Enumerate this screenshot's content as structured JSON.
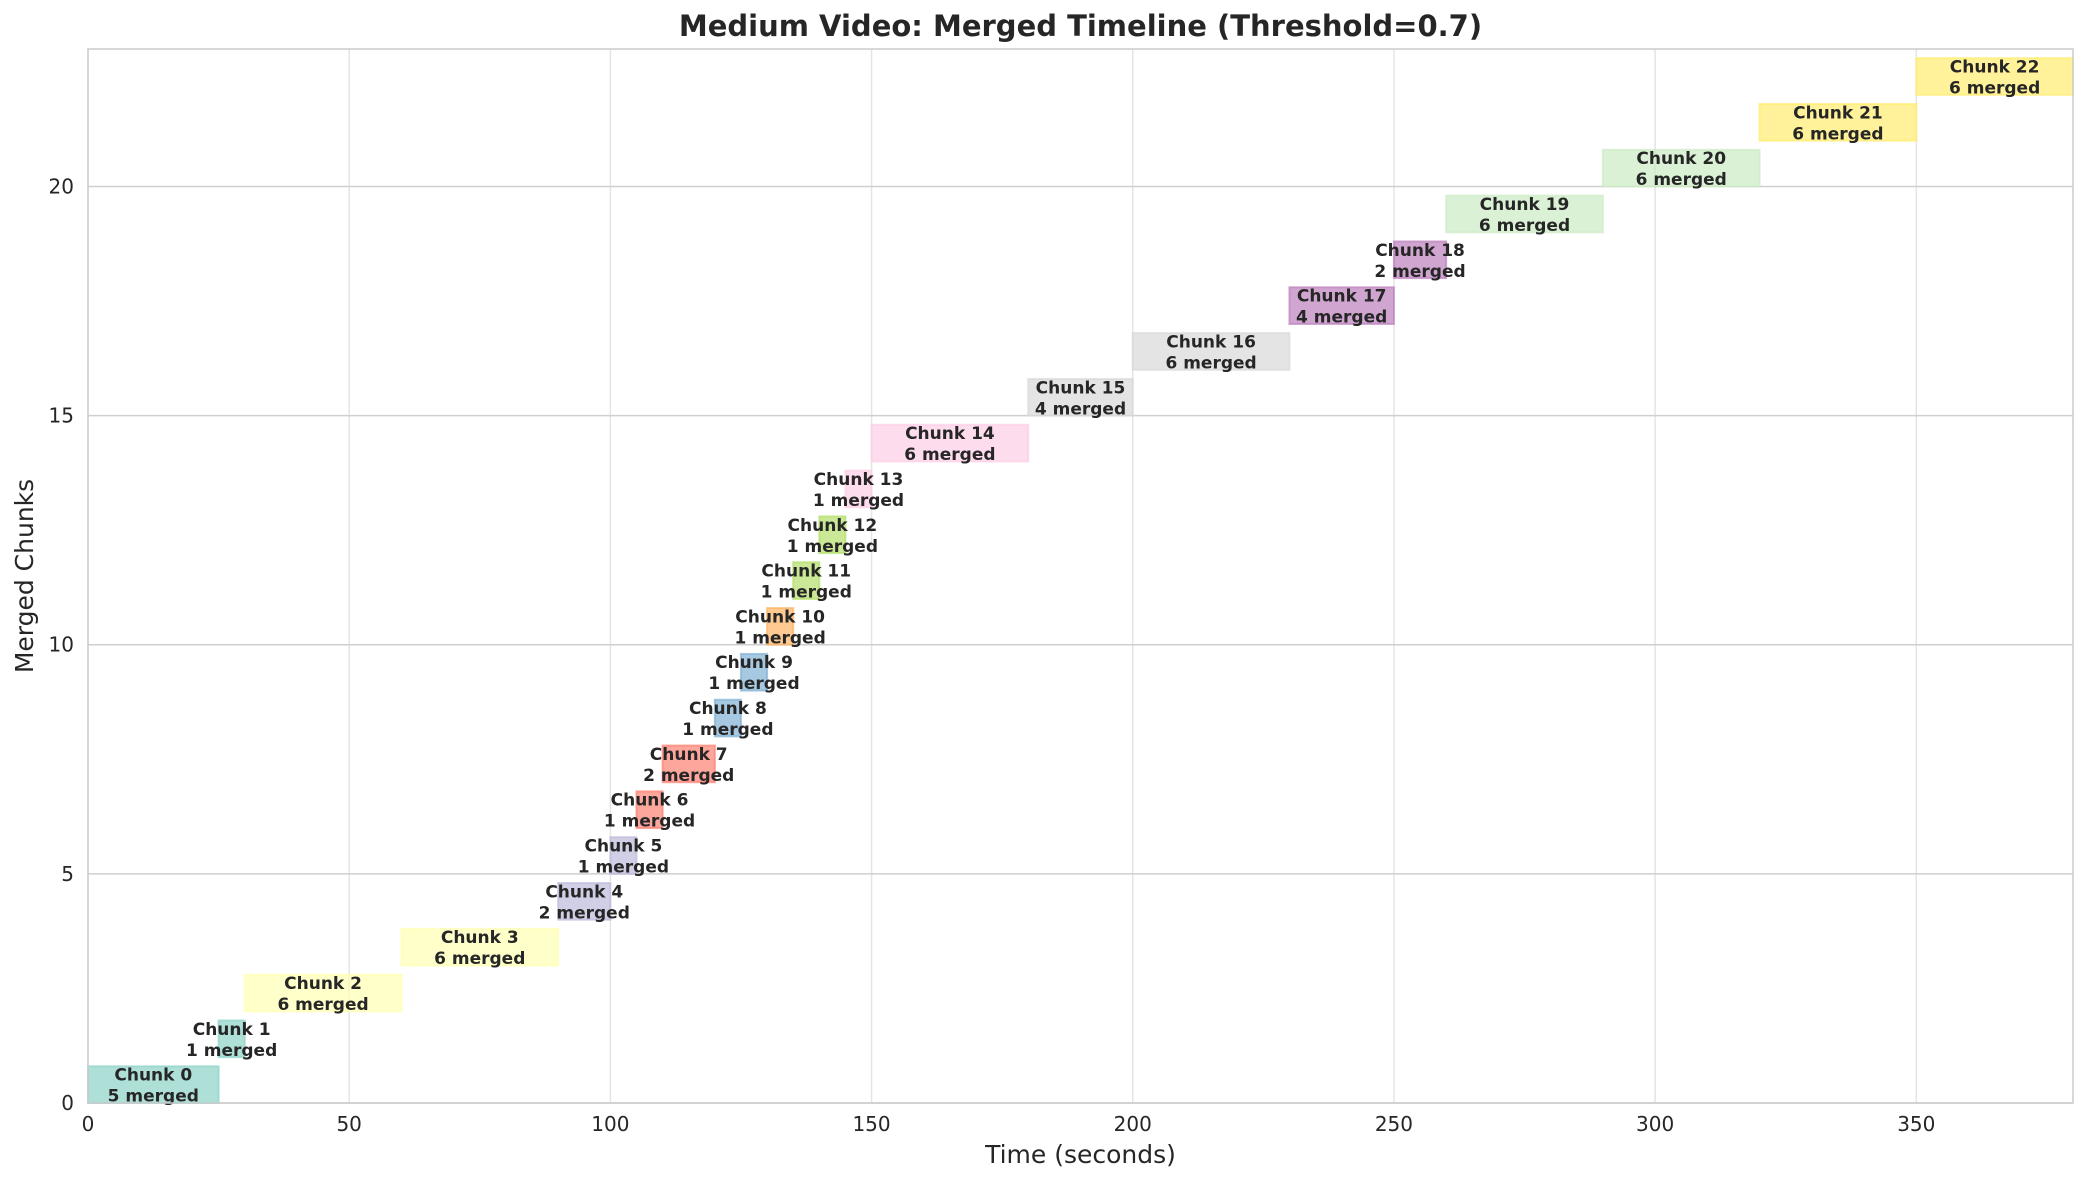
{
  "chart_data": {
    "type": "bar",
    "orientation": "horizontal-timeline",
    "title": "Medium Video: Merged Timeline (Threshold=0.7)",
    "xlabel": "Time (seconds)",
    "ylabel": "Merged Chunks",
    "xlim": [
      0,
      380
    ],
    "ylim": [
      0,
      23
    ],
    "xticks": [
      0,
      50,
      100,
      150,
      200,
      250,
      300,
      350
    ],
    "yticks": [
      0,
      5,
      10,
      15,
      20
    ],
    "grid": true,
    "legend": "none",
    "bar_opacity": 0.7,
    "chunks": [
      {
        "index": 0,
        "label": "Chunk 0",
        "sublabel": "5 merged",
        "start": 0,
        "end": 25,
        "color": "#8dd3c7"
      },
      {
        "index": 1,
        "label": "Chunk 1",
        "sublabel": "1 merged",
        "start": 25,
        "end": 30,
        "color": "#8dd3c7"
      },
      {
        "index": 2,
        "label": "Chunk 2",
        "sublabel": "6 merged",
        "start": 30,
        "end": 60,
        "color": "#ffffb3"
      },
      {
        "index": 3,
        "label": "Chunk 3",
        "sublabel": "6 merged",
        "start": 60,
        "end": 90,
        "color": "#ffffb3"
      },
      {
        "index": 4,
        "label": "Chunk 4",
        "sublabel": "2 merged",
        "start": 90,
        "end": 100,
        "color": "#bebada"
      },
      {
        "index": 5,
        "label": "Chunk 5",
        "sublabel": "1 merged",
        "start": 100,
        "end": 105,
        "color": "#bebada"
      },
      {
        "index": 6,
        "label": "Chunk 6",
        "sublabel": "1 merged",
        "start": 105,
        "end": 110,
        "color": "#fb8072"
      },
      {
        "index": 7,
        "label": "Chunk 7",
        "sublabel": "2 merged",
        "start": 110,
        "end": 120,
        "color": "#fb8072"
      },
      {
        "index": 8,
        "label": "Chunk 8",
        "sublabel": "1 merged",
        "start": 120,
        "end": 125,
        "color": "#80b1d3"
      },
      {
        "index": 9,
        "label": "Chunk 9",
        "sublabel": "1 merged",
        "start": 125,
        "end": 130,
        "color": "#80b1d3"
      },
      {
        "index": 10,
        "label": "Chunk 10",
        "sublabel": "1 merged",
        "start": 130,
        "end": 135,
        "color": "#fdb462"
      },
      {
        "index": 11,
        "label": "Chunk 11",
        "sublabel": "1 merged",
        "start": 135,
        "end": 140,
        "color": "#b3de69"
      },
      {
        "index": 12,
        "label": "Chunk 12",
        "sublabel": "1 merged",
        "start": 140,
        "end": 145,
        "color": "#b3de69"
      },
      {
        "index": 13,
        "label": "Chunk 13",
        "sublabel": "1 merged",
        "start": 145,
        "end": 150,
        "color": "#fccde5"
      },
      {
        "index": 14,
        "label": "Chunk 14",
        "sublabel": "6 merged",
        "start": 150,
        "end": 180,
        "color": "#fccde5"
      },
      {
        "index": 15,
        "label": "Chunk 15",
        "sublabel": "4 merged",
        "start": 180,
        "end": 200,
        "color": "#d9d9d9"
      },
      {
        "index": 16,
        "label": "Chunk 16",
        "sublabel": "6 merged",
        "start": 200,
        "end": 230,
        "color": "#d9d9d9"
      },
      {
        "index": 17,
        "label": "Chunk 17",
        "sublabel": "4 merged",
        "start": 230,
        "end": 250,
        "color": "#bc80bd"
      },
      {
        "index": 18,
        "label": "Chunk 18",
        "sublabel": "2 merged",
        "start": 250,
        "end": 260,
        "color": "#bc80bd"
      },
      {
        "index": 19,
        "label": "Chunk 19",
        "sublabel": "6 merged",
        "start": 260,
        "end": 290,
        "color": "#ccebc5"
      },
      {
        "index": 20,
        "label": "Chunk 20",
        "sublabel": "6 merged",
        "start": 290,
        "end": 320,
        "color": "#ccebc5"
      },
      {
        "index": 21,
        "label": "Chunk 21",
        "sublabel": "6 merged",
        "start": 320,
        "end": 350,
        "color": "#ffed6f"
      },
      {
        "index": 22,
        "label": "Chunk 22",
        "sublabel": "6 merged",
        "start": 350,
        "end": 380,
        "color": "#ffed6f"
      }
    ]
  }
}
